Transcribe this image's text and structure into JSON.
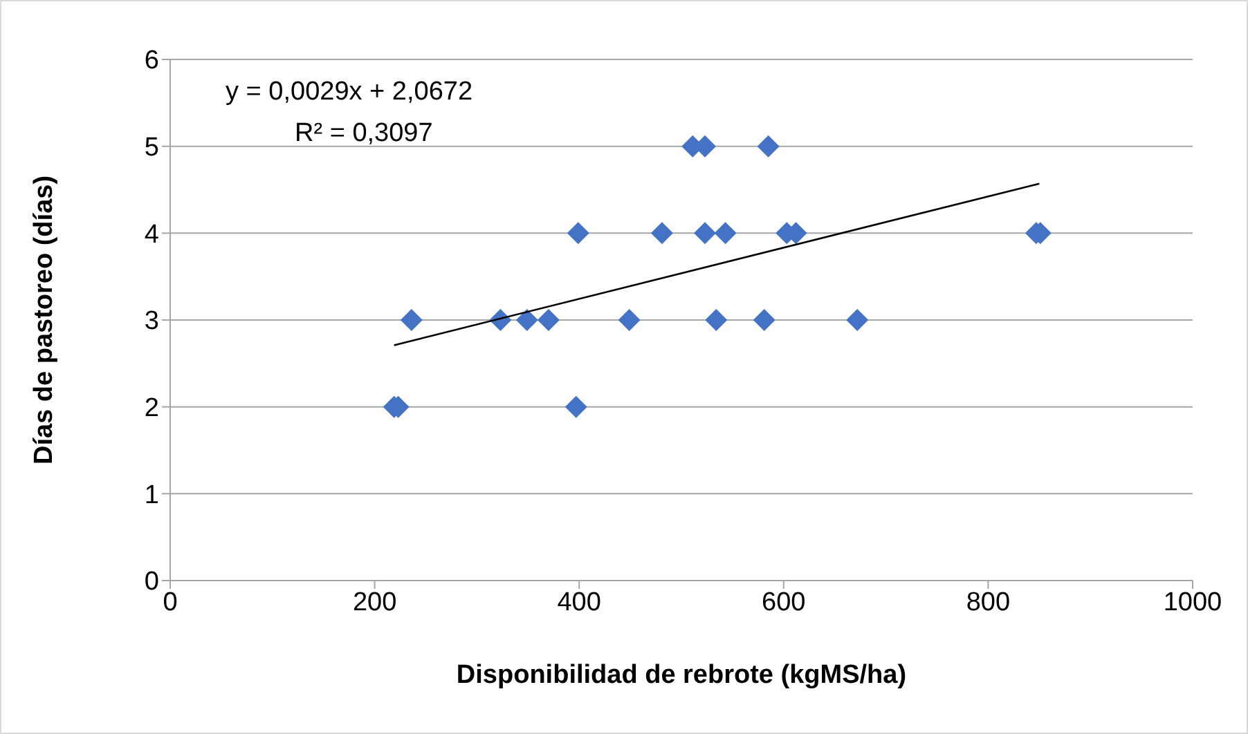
{
  "chart_data": {
    "type": "scatter",
    "xlabel": "Disponibilidad de rebrote (kgMS/ha)",
    "ylabel": "Días de pastoreo (días)",
    "annotations": [
      "y = 0,0029x + 2,0672",
      "R² = 0,3097"
    ],
    "series": [
      {
        "type": "scatter",
        "color": "#4472c4",
        "marker": "diamond",
        "x": [
          511,
          523,
          585,
          399,
          481,
          523,
          543,
          603,
          612,
          847,
          851,
          236,
          323,
          349,
          370,
          449,
          534,
          581,
          672,
          219,
          223,
          397
        ],
        "values": [
          5,
          5,
          5,
          4,
          4,
          4,
          4,
          4,
          4,
          4,
          4,
          3,
          3,
          3,
          3,
          3,
          3,
          3,
          3,
          2,
          2,
          2
        ]
      },
      {
        "type": "line",
        "color": "#000000",
        "marker": "none",
        "line_style": "solid",
        "x": [
          219,
          850
        ],
        "values": [
          2.71,
          4.57
        ]
      }
    ],
    "xlim": [
      0,
      1000
    ],
    "xticks": [
      0,
      200,
      400,
      600,
      800,
      1000
    ],
    "ylim": [
      0,
      6
    ],
    "yticks": [
      0,
      1,
      2,
      3,
      4,
      5,
      6
    ],
    "grid": "y",
    "legend": false
  }
}
